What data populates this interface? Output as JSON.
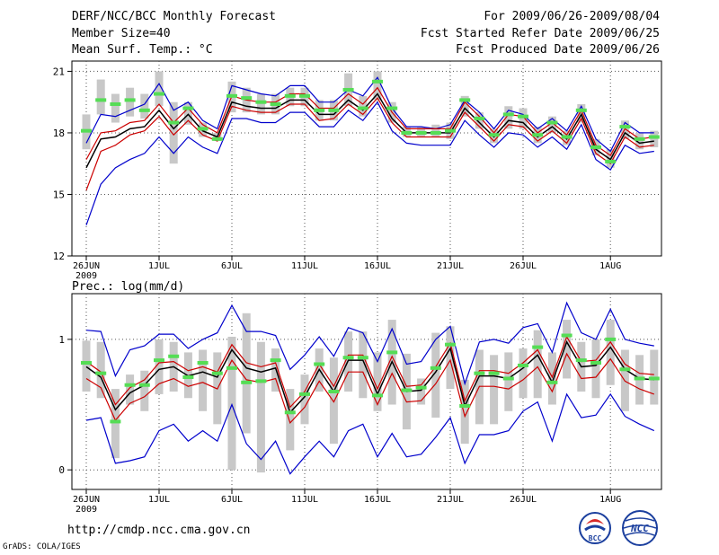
{
  "header": {
    "title": "DERF/NCC/BCC Monthly Forecast",
    "member_size": "Member Size=40",
    "variable_temp": "Mean Surf. Temp.: °C",
    "period": "For 2009/06/26-2009/08/04",
    "fcst_started": "Fcst Started Refer Date 2009/06/25",
    "fcst_produced": "Fcst Produced Date 2009/06/26"
  },
  "footer": {
    "url": "http://cmdp.ncc.cma.gov.cn",
    "grads_credit": "GrADS: COLA/IGES",
    "logo_bcc": "BCC",
    "logo_ncc": "NCC"
  },
  "colors": {
    "ensemble_mean": "#000000",
    "inner_range": "#cc0000",
    "outer_range": "#0000cc",
    "box": "#c8c8c8",
    "dot": "#55dd55",
    "grid": "#555555"
  },
  "chart_data": [
    {
      "type": "line",
      "title": "Mean Surf. Temp.: °C",
      "x": [
        1,
        2,
        3,
        4,
        5,
        6,
        7,
        8,
        9,
        10,
        11,
        12,
        13,
        14,
        15,
        16,
        17,
        18,
        19,
        20,
        21,
        22,
        23,
        24,
        25,
        26,
        27,
        28,
        29,
        30,
        31,
        32,
        33,
        34,
        35,
        36,
        37,
        38,
        39,
        40
      ],
      "xticks": [
        {
          "day": 1,
          "label": "26JUN",
          "sub": "2009"
        },
        {
          "day": 6,
          "label": "1JUL"
        },
        {
          "day": 11,
          "label": "6JUL"
        },
        {
          "day": 16,
          "label": "11JUL"
        },
        {
          "day": 21,
          "label": "16JUL"
        },
        {
          "day": 26,
          "label": "21JUL"
        },
        {
          "day": 31,
          "label": "26JUL"
        },
        {
          "day": 37,
          "label": "1AUG"
        }
      ],
      "ylim": [
        12,
        21.5
      ],
      "yticks": [
        12,
        15,
        18,
        21
      ],
      "series": [
        {
          "name": "ensemble-mean",
          "values": [
            16.3,
            17.7,
            17.8,
            18.2,
            18.3,
            19.1,
            18.2,
            18.9,
            18.1,
            17.8,
            19.5,
            19.3,
            19.2,
            19.2,
            19.6,
            19.6,
            18.9,
            18.9,
            19.6,
            19.1,
            19.9,
            18.7,
            18.0,
            18.0,
            18.0,
            18.0,
            19.2,
            18.5,
            17.8,
            18.6,
            18.5,
            17.8,
            18.3,
            17.7,
            18.9,
            17.2,
            16.7,
            18.0,
            17.5,
            17.6
          ]
        },
        {
          "name": "upper-inner",
          "values": [
            16.7,
            18.0,
            18.1,
            18.5,
            18.6,
            19.4,
            18.5,
            19.2,
            18.4,
            18.0,
            19.8,
            19.6,
            19.5,
            19.5,
            19.9,
            19.9,
            19.2,
            19.2,
            19.9,
            19.4,
            20.2,
            19.0,
            18.2,
            18.2,
            18.2,
            18.2,
            19.5,
            18.8,
            18.0,
            18.9,
            18.8,
            18.0,
            18.5,
            17.9,
            19.1,
            17.4,
            16.9,
            18.2,
            17.7,
            17.8
          ]
        },
        {
          "name": "lower-inner",
          "values": [
            15.2,
            17.1,
            17.4,
            17.9,
            18.1,
            18.8,
            17.9,
            18.6,
            17.9,
            17.6,
            19.3,
            19.1,
            19.0,
            19.0,
            19.4,
            19.4,
            18.6,
            18.7,
            19.4,
            18.9,
            19.7,
            18.5,
            17.8,
            17.8,
            17.8,
            17.8,
            19.0,
            18.3,
            17.6,
            18.4,
            18.3,
            17.6,
            18.1,
            17.5,
            18.7,
            17.0,
            16.5,
            17.8,
            17.3,
            17.4
          ]
        },
        {
          "name": "upper-outer",
          "values": [
            17.5,
            18.9,
            18.8,
            19.1,
            19.4,
            20.4,
            19.1,
            19.5,
            18.6,
            18.2,
            20.3,
            20.1,
            19.9,
            19.8,
            20.3,
            20.3,
            19.5,
            19.5,
            20.1,
            19.8,
            20.7,
            19.2,
            18.3,
            18.3,
            18.2,
            18.4,
            19.6,
            19.0,
            18.2,
            19.1,
            18.9,
            18.2,
            18.7,
            18.1,
            19.3,
            17.7,
            17.1,
            18.5,
            18.0,
            18.0
          ]
        },
        {
          "name": "lower-outer",
          "values": [
            13.5,
            15.5,
            16.3,
            16.7,
            17.0,
            17.8,
            17.0,
            17.8,
            17.3,
            17.0,
            18.7,
            18.7,
            18.5,
            18.5,
            19.0,
            19.0,
            18.3,
            18.3,
            19.1,
            18.6,
            19.5,
            18.1,
            17.5,
            17.4,
            17.4,
            17.4,
            18.6,
            17.9,
            17.3,
            18.0,
            17.9,
            17.3,
            17.8,
            17.2,
            18.4,
            16.7,
            16.2,
            17.4,
            17.0,
            17.1
          ]
        },
        {
          "name": "observation-dots",
          "values": [
            18.1,
            19.6,
            19.4,
            19.6,
            19.1,
            19.9,
            18.5,
            19.2,
            18.2,
            17.7,
            19.8,
            19.7,
            19.5,
            19.4,
            19.8,
            19.8,
            19.1,
            19.1,
            20.1,
            19.2,
            20.5,
            19.2,
            18.0,
            18.0,
            18.0,
            18.1,
            19.6,
            18.7,
            17.9,
            18.9,
            18.8,
            17.9,
            18.5,
            17.8,
            19.1,
            17.3,
            16.6,
            18.3,
            17.7,
            17.8
          ]
        }
      ],
      "boxes": [
        [
          17.2,
          18.9
        ],
        [
          18.9,
          20.6
        ],
        [
          18.5,
          19.9
        ],
        [
          18.8,
          20.2
        ],
        [
          18.7,
          19.9
        ],
        [
          19.3,
          21.0
        ],
        [
          16.5,
          19.5
        ],
        [
          18.4,
          19.5
        ],
        [
          17.8,
          18.5
        ],
        [
          17.6,
          18.0
        ],
        [
          19.0,
          20.5
        ],
        [
          19.0,
          20.2
        ],
        [
          18.9,
          19.9
        ],
        [
          18.9,
          19.9
        ],
        [
          19.3,
          20.2
        ],
        [
          19.3,
          20.2
        ],
        [
          18.6,
          19.6
        ],
        [
          18.6,
          19.6
        ],
        [
          19.3,
          20.9
        ],
        [
          18.8,
          19.8
        ],
        [
          19.6,
          21.0
        ],
        [
          18.5,
          19.5
        ],
        [
          17.8,
          18.3
        ],
        [
          17.8,
          18.3
        ],
        [
          17.8,
          18.4
        ],
        [
          17.7,
          18.5
        ],
        [
          18.8,
          19.8
        ],
        [
          18.2,
          19.0
        ],
        [
          17.5,
          18.2
        ],
        [
          18.2,
          19.3
        ],
        [
          18.2,
          19.2
        ],
        [
          17.5,
          18.3
        ],
        [
          18.0,
          18.8
        ],
        [
          17.4,
          18.1
        ],
        [
          18.5,
          19.4
        ],
        [
          16.9,
          17.7
        ],
        [
          16.3,
          17.2
        ],
        [
          17.7,
          18.6
        ],
        [
          17.2,
          18.0
        ],
        [
          17.3,
          18.1
        ]
      ]
    },
    {
      "type": "line",
      "title": "Prec.: log(mm/d)",
      "x": [
        1,
        2,
        3,
        4,
        5,
        6,
        7,
        8,
        9,
        10,
        11,
        12,
        13,
        14,
        15,
        16,
        17,
        18,
        19,
        20,
        21,
        22,
        23,
        24,
        25,
        26,
        27,
        28,
        29,
        30,
        31,
        32,
        33,
        34,
        35,
        36,
        37,
        38,
        39,
        40
      ],
      "xticks": [
        {
          "day": 1,
          "label": "26JUN",
          "sub": "2009"
        },
        {
          "day": 6,
          "label": "1JUL"
        },
        {
          "day": 11,
          "label": "6JUL"
        },
        {
          "day": 16,
          "label": "11JUL"
        },
        {
          "day": 21,
          "label": "16JUL"
        },
        {
          "day": 26,
          "label": "21JUL"
        },
        {
          "day": 31,
          "label": "26JUL"
        },
        {
          "day": 37,
          "label": "1AUG"
        }
      ],
      "ylim": [
        -0.15,
        1.35
      ],
      "yticks": [
        0,
        1
      ],
      "series": [
        {
          "name": "ensemble-mean",
          "values": [
            0.79,
            0.71,
            0.46,
            0.59,
            0.65,
            0.77,
            0.79,
            0.72,
            0.75,
            0.71,
            0.92,
            0.78,
            0.75,
            0.78,
            0.44,
            0.56,
            0.77,
            0.6,
            0.84,
            0.84,
            0.58,
            0.83,
            0.6,
            0.61,
            0.75,
            0.93,
            0.49,
            0.72,
            0.72,
            0.7,
            0.78,
            0.88,
            0.67,
            0.98,
            0.79,
            0.8,
            0.94,
            0.77,
            0.7,
            0.69
          ]
        },
        {
          "name": "upper-inner",
          "values": [
            0.83,
            0.75,
            0.5,
            0.63,
            0.69,
            0.82,
            0.83,
            0.76,
            0.79,
            0.75,
            0.96,
            0.82,
            0.79,
            0.82,
            0.48,
            0.6,
            0.81,
            0.64,
            0.88,
            0.88,
            0.62,
            0.87,
            0.64,
            0.65,
            0.79,
            0.97,
            0.53,
            0.76,
            0.76,
            0.74,
            0.82,
            0.92,
            0.71,
            1.02,
            0.83,
            0.84,
            0.98,
            0.81,
            0.74,
            0.73
          ]
        },
        {
          "name": "lower-inner",
          "values": [
            0.7,
            0.63,
            0.38,
            0.51,
            0.56,
            0.66,
            0.7,
            0.64,
            0.67,
            0.62,
            0.84,
            0.69,
            0.67,
            0.7,
            0.36,
            0.48,
            0.68,
            0.52,
            0.75,
            0.75,
            0.5,
            0.74,
            0.52,
            0.53,
            0.66,
            0.84,
            0.41,
            0.64,
            0.64,
            0.62,
            0.69,
            0.79,
            0.6,
            0.89,
            0.7,
            0.71,
            0.85,
            0.68,
            0.62,
            0.58
          ]
        },
        {
          "name": "upper-outer",
          "values": [
            1.07,
            1.06,
            0.72,
            0.92,
            0.95,
            1.04,
            1.04,
            0.93,
            1.0,
            1.05,
            1.26,
            1.06,
            1.06,
            1.03,
            0.77,
            0.88,
            1.02,
            0.87,
            1.09,
            1.05,
            0.83,
            1.08,
            0.81,
            0.83,
            1.0,
            1.1,
            0.66,
            0.98,
            1.0,
            0.97,
            1.09,
            1.12,
            0.9,
            1.28,
            1.05,
            1.0,
            1.23,
            1.0,
            0.97,
            0.95
          ]
        },
        {
          "name": "lower-outer",
          "values": [
            0.38,
            0.4,
            0.05,
            0.07,
            0.1,
            0.3,
            0.35,
            0.22,
            0.3,
            0.22,
            0.5,
            0.2,
            0.08,
            0.22,
            -0.03,
            0.1,
            0.22,
            0.1,
            0.3,
            0.35,
            0.1,
            0.28,
            0.1,
            0.12,
            0.25,
            0.4,
            0.05,
            0.27,
            0.27,
            0.3,
            0.45,
            0.52,
            0.22,
            0.58,
            0.4,
            0.42,
            0.58,
            0.41,
            0.35,
            0.3
          ]
        },
        {
          "name": "observation-dots",
          "values": [
            0.82,
            0.74,
            0.37,
            0.65,
            0.65,
            0.84,
            0.87,
            0.71,
            0.82,
            0.74,
            0.78,
            0.67,
            0.68,
            0.84,
            0.44,
            0.58,
            0.81,
            0.6,
            0.86,
            0.86,
            0.57,
            0.9,
            0.61,
            0.63,
            0.78,
            0.96,
            0.49,
            0.74,
            0.74,
            0.7,
            0.8,
            0.94,
            0.67,
            1.03,
            0.84,
            0.82,
            1.0,
            0.77,
            0.7,
            0.7
          ]
        }
      ],
      "boxes": [
        [
          0.6,
          0.99
        ],
        [
          0.55,
          0.98
        ],
        [
          0.09,
          0.62
        ],
        [
          0.5,
          0.73
        ],
        [
          0.45,
          0.76
        ],
        [
          0.58,
          1.0
        ],
        [
          0.6,
          0.98
        ],
        [
          0.55,
          0.9
        ],
        [
          0.45,
          0.92
        ],
        [
          0.35,
          0.9
        ],
        [
          0.0,
          1.02
        ],
        [
          0.28,
          1.2
        ],
        [
          -0.02,
          0.98
        ],
        [
          0.6,
          0.93
        ],
        [
          0.15,
          0.62
        ],
        [
          0.35,
          0.73
        ],
        [
          0.6,
          0.93
        ],
        [
          0.2,
          0.86
        ],
        [
          0.6,
          1.06
        ],
        [
          0.55,
          1.06
        ],
        [
          0.45,
          0.9
        ],
        [
          0.5,
          1.15
        ],
        [
          0.31,
          0.89
        ],
        [
          0.5,
          0.7
        ],
        [
          0.4,
          1.05
        ],
        [
          0.62,
          1.1
        ],
        [
          0.2,
          0.69
        ],
        [
          0.35,
          0.92
        ],
        [
          0.35,
          0.88
        ],
        [
          0.45,
          0.9
        ],
        [
          0.55,
          0.93
        ],
        [
          0.55,
          1.07
        ],
        [
          0.5,
          0.9
        ],
        [
          0.7,
          1.15
        ],
        [
          0.6,
          0.98
        ],
        [
          0.55,
          1.0
        ],
        [
          0.65,
          1.15
        ],
        [
          0.45,
          0.92
        ],
        [
          0.5,
          0.88
        ],
        [
          0.5,
          0.92
        ]
      ]
    }
  ]
}
